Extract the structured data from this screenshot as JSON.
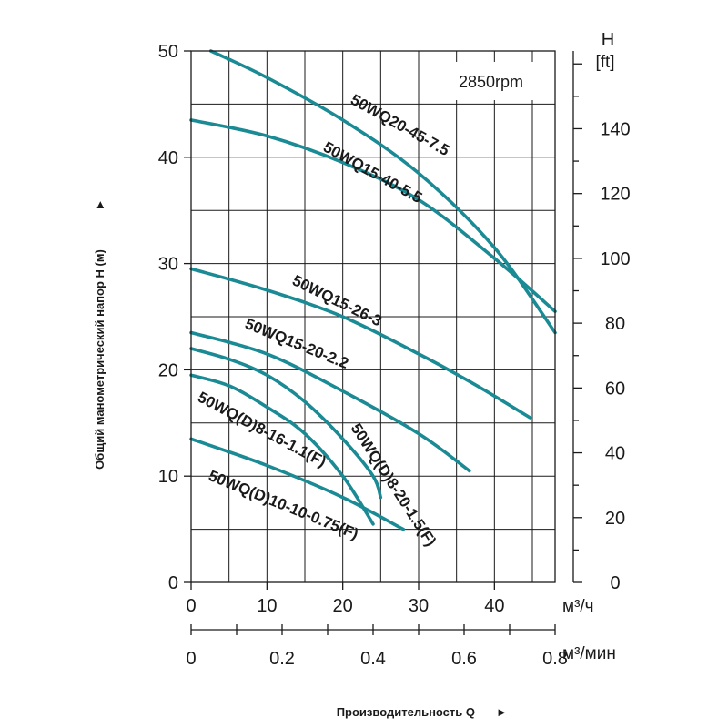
{
  "chart_data": {
    "type": "line",
    "speed_label": "2850rpm",
    "y_label": "Общий манометрический напор H (м)",
    "x_label": "Производительность Q",
    "arrow_glyph": "►",
    "ylim": [
      0,
      50
    ],
    "xlim": [
      0,
      48
    ],
    "y_ticks": [
      "0",
      "10",
      "20",
      "30",
      "40",
      "50"
    ],
    "x_ticks": [
      "0",
      "10",
      "20",
      "30",
      "40"
    ],
    "x_unit": "м³/ч",
    "x2_ticks": [
      "0",
      "0.2",
      "0.4",
      "0.6",
      "0.8"
    ],
    "x2_unit": "м³/мин",
    "x2_range": [
      0,
      0.8
    ],
    "y2_title": "H",
    "y2_unit": "[ft]",
    "y2_ticks": [
      "0",
      "20",
      "40",
      "60",
      "80",
      "100",
      "120",
      "140"
    ],
    "y2_range": [
      0,
      164
    ],
    "grid": true,
    "color": "#1a8a94",
    "series": [
      {
        "name": "50WQ20-45-7.5",
        "points": [
          [
            2.6,
            50
          ],
          [
            10,
            47.5
          ],
          [
            20,
            43.5
          ],
          [
            30,
            38.5
          ],
          [
            40,
            31.5
          ],
          [
            48,
            23.5
          ]
        ]
      },
      {
        "name": "50WQ15-40-5.5",
        "points": [
          [
            0,
            43.5
          ],
          [
            10,
            42
          ],
          [
            20,
            39.5
          ],
          [
            30,
            36
          ],
          [
            40,
            30.5
          ],
          [
            48,
            25.5
          ]
        ]
      },
      {
        "name": "50WQ15-26-3",
        "points": [
          [
            0,
            29.5
          ],
          [
            10,
            27.5
          ],
          [
            20,
            25
          ],
          [
            30,
            21.5
          ],
          [
            37.7,
            18.5
          ],
          [
            44.7,
            15.5
          ]
        ]
      },
      {
        "name": "50WQ15-20-2.2",
        "points": [
          [
            0,
            23.5
          ],
          [
            10,
            21.5
          ],
          [
            20,
            18
          ],
          [
            30,
            14
          ],
          [
            36.7,
            10.5
          ]
        ]
      },
      {
        "name": "50WQ(D)8-20-1.5(F)",
        "points": [
          [
            0,
            22
          ],
          [
            5,
            21
          ],
          [
            10,
            19.5
          ],
          [
            15,
            17
          ],
          [
            20,
            13.5
          ],
          [
            24,
            10
          ],
          [
            25,
            8
          ]
        ]
      },
      {
        "name": "50WQ(D)8-16-1.1(F)",
        "points": [
          [
            0,
            19.5
          ],
          [
            5,
            18.5
          ],
          [
            10,
            16.5
          ],
          [
            15,
            14
          ],
          [
            20,
            10
          ],
          [
            24,
            5.5
          ]
        ]
      },
      {
        "name": "50WQ(D)10-10-0.75(F)",
        "points": [
          [
            0,
            13.5
          ],
          [
            10,
            11
          ],
          [
            20,
            8
          ],
          [
            28,
            5
          ]
        ]
      }
    ]
  }
}
